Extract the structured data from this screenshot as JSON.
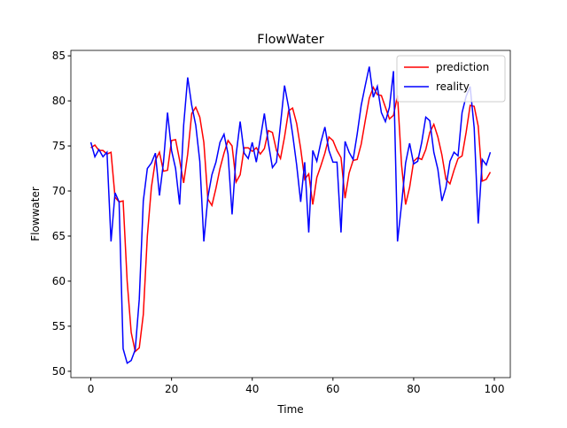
{
  "chart_data": {
    "type": "line",
    "title": "FlowWater",
    "x_label": "Time",
    "y_label": "Flowwater",
    "x": [
      0,
      1,
      2,
      3,
      4,
      5,
      6,
      7,
      8,
      9,
      10,
      11,
      12,
      13,
      14,
      15,
      16,
      17,
      18,
      19,
      20,
      21,
      22,
      23,
      24,
      25,
      26,
      27,
      28,
      29,
      30,
      31,
      32,
      33,
      34,
      35,
      36,
      37,
      38,
      39,
      40,
      41,
      42,
      43,
      44,
      45,
      46,
      47,
      48,
      49,
      50,
      51,
      52,
      53,
      54,
      55,
      56,
      57,
      58,
      59,
      60,
      61,
      62,
      63,
      64,
      65,
      66,
      67,
      68,
      69,
      70,
      71,
      72,
      73,
      74,
      75,
      76,
      77,
      78,
      79,
      80,
      81,
      82,
      83,
      84,
      85,
      86,
      87,
      88,
      89,
      90,
      91,
      92,
      93,
      94,
      95,
      96,
      97,
      98,
      99
    ],
    "series": [
      {
        "name": "prediction",
        "color": "#ff0000",
        "values": [
          74.8,
          75.1,
          74.5,
          74.5,
          74.1,
          74.3,
          69.3,
          68.8,
          68.9,
          60,
          54.3,
          52.2,
          52.6,
          56.3,
          65,
          70.4,
          73.4,
          74.3,
          72.2,
          72.3,
          75.6,
          75.7,
          73.4,
          70.9,
          74.1,
          78.6,
          79.3,
          78.2,
          75.4,
          69.1,
          68.4,
          70.3,
          72.5,
          74.2,
          75.6,
          75,
          71,
          71.8,
          74.8,
          74.8,
          74.4,
          74.8,
          74.1,
          74.7,
          76.7,
          76.5,
          74.5,
          73.6,
          76,
          78.9,
          79.2,
          77.5,
          74.7,
          71.3,
          71.9,
          68.5,
          71.5,
          72.8,
          74.2,
          76,
          75.6,
          74.5,
          73.7,
          69.2,
          72,
          73.4,
          73.5,
          75.2,
          77.8,
          80.3,
          81.5,
          80.7,
          80.6,
          79.3,
          78,
          78.4,
          80.6,
          72.9,
          68.5,
          70.4,
          73.3,
          73.7,
          73.5,
          74.6,
          76.5,
          77.4,
          76,
          74,
          71.3,
          70.8,
          72.3,
          73.6,
          73.9,
          76.5,
          79.5,
          79.4,
          77.2,
          71.1,
          71.3,
          72.1
        ]
      },
      {
        "name": "reality",
        "color": "#0000ff",
        "values": [
          75.4,
          73.8,
          74.6,
          73.8,
          74.3,
          64.4,
          69.8,
          68.8,
          52.5,
          50.9,
          51.2,
          52.4,
          58,
          68.9,
          72.5,
          73.1,
          74.2,
          69.5,
          73.2,
          78.7,
          74.5,
          72.5,
          68.5,
          77.3,
          82.6,
          79.5,
          77.3,
          73.3,
          64.4,
          69.3,
          71.8,
          73.2,
          75.4,
          76.3,
          74.1,
          67.4,
          74,
          77.7,
          74.2,
          73.6,
          75.4,
          73.2,
          75.8,
          78.6,
          75.3,
          72.6,
          73.2,
          77.4,
          81.7,
          79.3,
          76.3,
          72.9,
          68.8,
          73.2,
          65.4,
          74.5,
          73.3,
          75.4,
          77.1,
          74.5,
          73.2,
          73.2,
          65.4,
          75.5,
          74.3,
          73.5,
          76.3,
          79.5,
          81.7,
          83.8,
          80.4,
          81.6,
          78.7,
          77.7,
          79.3,
          83.3,
          64.4,
          68.5,
          73.1,
          75.3,
          73,
          73.3,
          75.4,
          78.2,
          77.8,
          74.3,
          72.4,
          68.9,
          70.4,
          73.3,
          74.3,
          73.9,
          78.7,
          80.5,
          81.6,
          77,
          66.4,
          73.5,
          72.9,
          74.3
        ]
      }
    ],
    "xlim": [
      -4.95,
      103.95
    ],
    "ylim": [
      49.3,
      85.6
    ],
    "xticks": [
      0,
      20,
      40,
      60,
      80,
      100
    ],
    "yticks": [
      50,
      55,
      60,
      65,
      70,
      75,
      80,
      85
    ],
    "legend": "upper right"
  }
}
